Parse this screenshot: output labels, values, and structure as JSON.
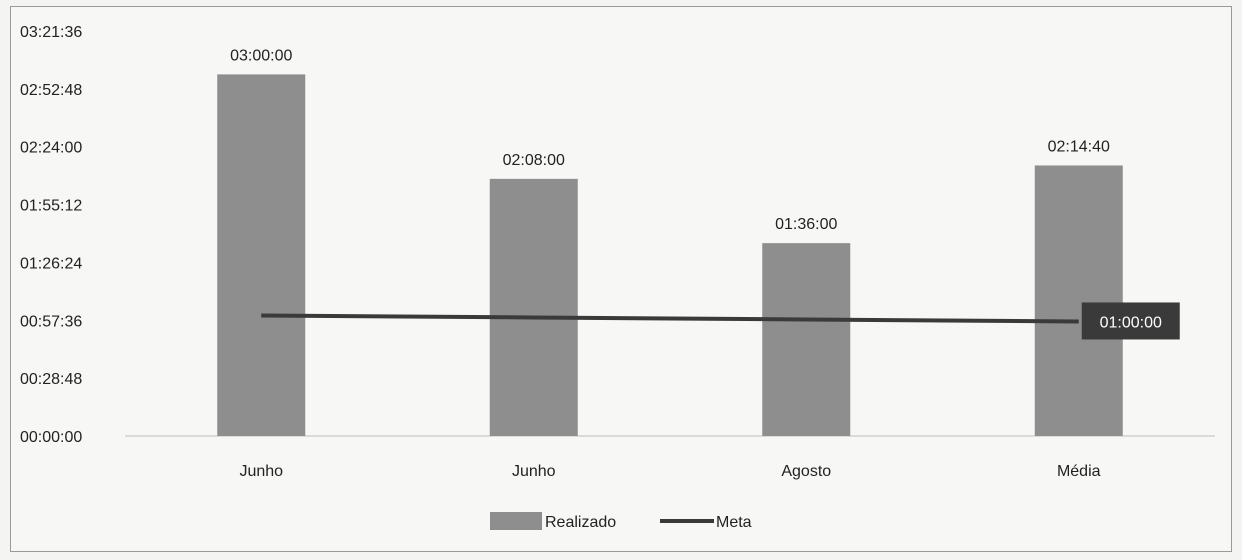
{
  "chart_data": {
    "type": "bar",
    "categories": [
      "Junho",
      "Junho",
      "Agosto",
      "Média"
    ],
    "series": [
      {
        "name": "Realizado",
        "kind": "bar",
        "values": [
          "03:00:00",
          "02:08:00",
          "01:36:00",
          "02:14:40"
        ],
        "data_labels": [
          "03:00:00",
          "02:08:00",
          "01:36:00",
          "02:14:40"
        ]
      },
      {
        "name": "Meta",
        "kind": "line",
        "values": [
          "01:00:00",
          "01:00:00",
          "01:00:00",
          "01:00:00"
        ],
        "data_label": "01:00:00"
      }
    ],
    "yticks": [
      "00:00:00",
      "00:28:48",
      "00:57:36",
      "01:26:24",
      "01:55:12",
      "02:24:00",
      "02:52:48",
      "03:21:36"
    ],
    "ylim": [
      "00:00:00",
      "03:21:36"
    ],
    "legend_position": "bottom",
    "grid": false,
    "colors": {
      "bar": "#8e8e8e",
      "line": "#3a3a3a",
      "label_box": "#3a3a3a",
      "label_box_text": "#ffffff"
    }
  }
}
